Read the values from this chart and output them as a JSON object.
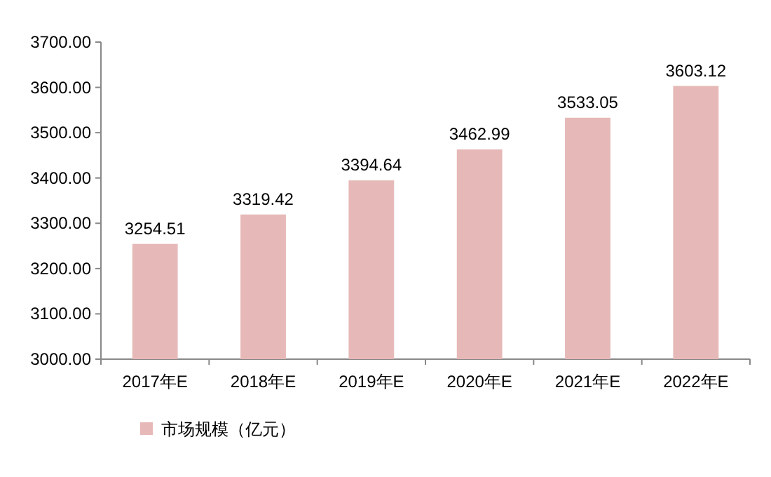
{
  "chart_data": {
    "type": "bar",
    "categories": [
      "2017年E",
      "2018年E",
      "2019年E",
      "2020年E",
      "2021年E",
      "2022年E"
    ],
    "series": [
      {
        "name": "市场规模（亿元）",
        "color": "#e6b9b8",
        "values": [
          3254.51,
          3319.42,
          3394.64,
          3462.99,
          3533.05,
          3603.12
        ]
      }
    ],
    "ylim": [
      3000,
      3700
    ],
    "yticks": [
      {
        "value": 3000,
        "label": "3000.00"
      },
      {
        "value": 3100,
        "label": "3100.00"
      },
      {
        "value": 3200,
        "label": "3200.00"
      },
      {
        "value": 3300,
        "label": "3300.00"
      },
      {
        "value": 3400,
        "label": "3400.00"
      },
      {
        "value": 3500,
        "label": "3500.00"
      },
      {
        "value": 3600,
        "label": "3600.00"
      },
      {
        "value": 3700,
        "label": "3700.00"
      }
    ],
    "data_labels": true,
    "legend": "bottom left",
    "grid": false
  }
}
